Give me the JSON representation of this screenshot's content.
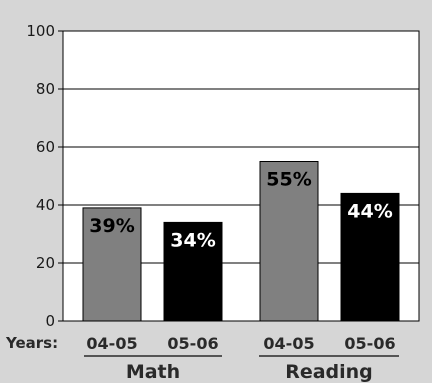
{
  "chart_data": {
    "type": "bar",
    "title": "",
    "xlabel": "",
    "ylabel": "",
    "ylim": [
      0,
      100
    ],
    "yticks": [
      0,
      20,
      40,
      60,
      80,
      100
    ],
    "grid": true,
    "x_prefix_label": "Years:",
    "groups": [
      {
        "name": "Math",
        "bars": [
          {
            "category": "04-05",
            "value": 39,
            "label": "39%",
            "color": "#808080",
            "label_color": "#000000"
          },
          {
            "category": "05-06",
            "value": 34,
            "label": "34%",
            "color": "#000000",
            "label_color": "#ffffff"
          }
        ]
      },
      {
        "name": "Reading",
        "bars": [
          {
            "category": "04-05",
            "value": 55,
            "label": "55%",
            "color": "#808080",
            "label_color": "#000000"
          },
          {
            "category": "05-06",
            "value": 44,
            "label": "44%",
            "color": "#000000",
            "label_color": "#ffffff"
          }
        ]
      }
    ],
    "colors": {
      "background": "#d6d6d6",
      "plot_background": "#ffffff",
      "gridline": "#000000"
    }
  }
}
